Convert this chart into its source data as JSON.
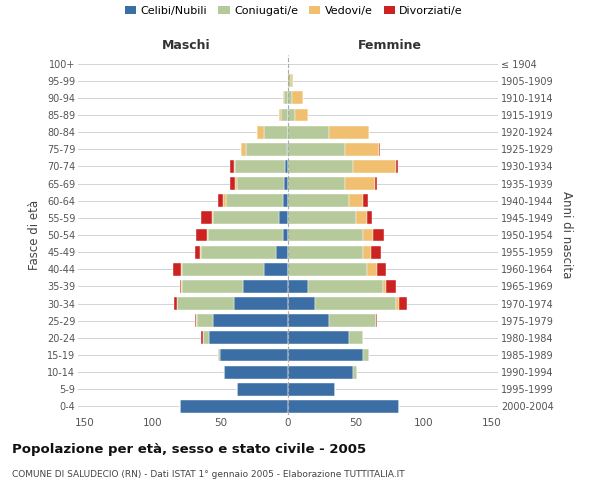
{
  "age_groups": [
    "0-4",
    "5-9",
    "10-14",
    "15-19",
    "20-24",
    "25-29",
    "30-34",
    "35-39",
    "40-44",
    "45-49",
    "50-54",
    "55-59",
    "60-64",
    "65-69",
    "70-74",
    "75-79",
    "80-84",
    "85-89",
    "90-94",
    "95-99",
    "100+"
  ],
  "birth_years": [
    "2000-2004",
    "1995-1999",
    "1990-1994",
    "1985-1989",
    "1980-1984",
    "1975-1979",
    "1970-1974",
    "1965-1969",
    "1960-1964",
    "1955-1959",
    "1950-1954",
    "1945-1949",
    "1940-1944",
    "1935-1939",
    "1930-1934",
    "1925-1929",
    "1920-1924",
    "1915-1919",
    "1910-1914",
    "1905-1909",
    "≤ 1904"
  ],
  "maschi": {
    "celibi": [
      80,
      38,
      47,
      50,
      58,
      55,
      40,
      33,
      18,
      9,
      4,
      7,
      4,
      3,
      2,
      1,
      0,
      0,
      0,
      0,
      0
    ],
    "coniugati": [
      0,
      0,
      0,
      2,
      5,
      12,
      42,
      45,
      60,
      55,
      55,
      48,
      42,
      35,
      37,
      30,
      18,
      5,
      3,
      0,
      0
    ],
    "vedovi": [
      0,
      0,
      0,
      0,
      0,
      1,
      0,
      1,
      1,
      1,
      1,
      1,
      2,
      1,
      1,
      4,
      5,
      2,
      1,
      0,
      0
    ],
    "divorziati": [
      0,
      0,
      0,
      0,
      1,
      1,
      2,
      1,
      6,
      4,
      8,
      8,
      4,
      4,
      3,
      0,
      0,
      0,
      0,
      0,
      0
    ]
  },
  "femmine": {
    "nubili": [
      82,
      35,
      48,
      55,
      45,
      30,
      20,
      15,
      0,
      0,
      0,
      0,
      0,
      0,
      0,
      0,
      0,
      0,
      0,
      0,
      0
    ],
    "coniugate": [
      0,
      0,
      3,
      5,
      10,
      35,
      60,
      55,
      58,
      55,
      55,
      50,
      45,
      42,
      48,
      42,
      30,
      5,
      3,
      2,
      0
    ],
    "vedove": [
      0,
      0,
      0,
      0,
      0,
      0,
      2,
      2,
      8,
      6,
      8,
      8,
      10,
      22,
      32,
      25,
      30,
      10,
      8,
      2,
      0
    ],
    "divorziate": [
      0,
      0,
      0,
      0,
      0,
      1,
      6,
      8,
      6,
      8,
      8,
      4,
      4,
      2,
      1,
      1,
      0,
      0,
      0,
      0,
      0
    ]
  },
  "colors": {
    "celibi_nubili": "#3b6ea5",
    "coniugati": "#b5c99a",
    "vedovi": "#f0c070",
    "divorziati": "#cc2222"
  },
  "title": "Popolazione per età, sesso e stato civile - 2005",
  "subtitle": "COMUNE DI SALUDECIO (RN) - Dati ISTAT 1° gennaio 2005 - Elaborazione TUTTITALIA.IT",
  "xlabel_maschi": "Maschi",
  "xlabel_femmine": "Femmine",
  "ylabel_left": "Fasce di età",
  "ylabel_right": "Anni di nascita",
  "xlim": 155
}
